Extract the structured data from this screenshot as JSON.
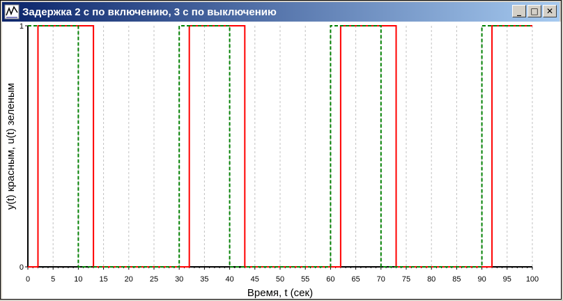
{
  "window": {
    "title": "Задержка 2 с по включению, 3 с по выключению",
    "icon": "app-chart-icon",
    "buttons": {
      "minimize": "_",
      "maximize": "□",
      "close": "✕"
    }
  },
  "chart_data": {
    "type": "line",
    "title": "",
    "xlabel": "Время, t (сек)",
    "ylabel": "y(t) красным, u(t) зеленым",
    "xlim": [
      0,
      100
    ],
    "ylim": [
      0,
      1
    ],
    "x_ticks": [
      0,
      5,
      10,
      15,
      20,
      25,
      30,
      35,
      40,
      45,
      50,
      55,
      60,
      65,
      70,
      75,
      80,
      85,
      90,
      95,
      100
    ],
    "y_ticks": [
      0,
      1
    ],
    "grid": "vertical-dashed",
    "series": [
      {
        "color": "#ff0000",
        "style": "solid",
        "x": [
          0,
          2,
          2,
          13,
          13,
          32,
          32,
          43,
          43,
          62,
          62,
          73,
          73,
          92,
          92,
          100
        ],
        "y": [
          0,
          0,
          1,
          1,
          0,
          0,
          1,
          1,
          0,
          0,
          1,
          1,
          0,
          0,
          1,
          1
        ]
      },
      {
        "color": "#008000",
        "style": "dashed",
        "x": [
          0,
          0,
          10,
          10,
          30,
          30,
          40,
          40,
          60,
          60,
          70,
          70,
          90,
          90,
          100
        ],
        "y": [
          1,
          1,
          1,
          0,
          0,
          1,
          1,
          0,
          0,
          1,
          1,
          0,
          0,
          1,
          1
        ]
      }
    ]
  }
}
